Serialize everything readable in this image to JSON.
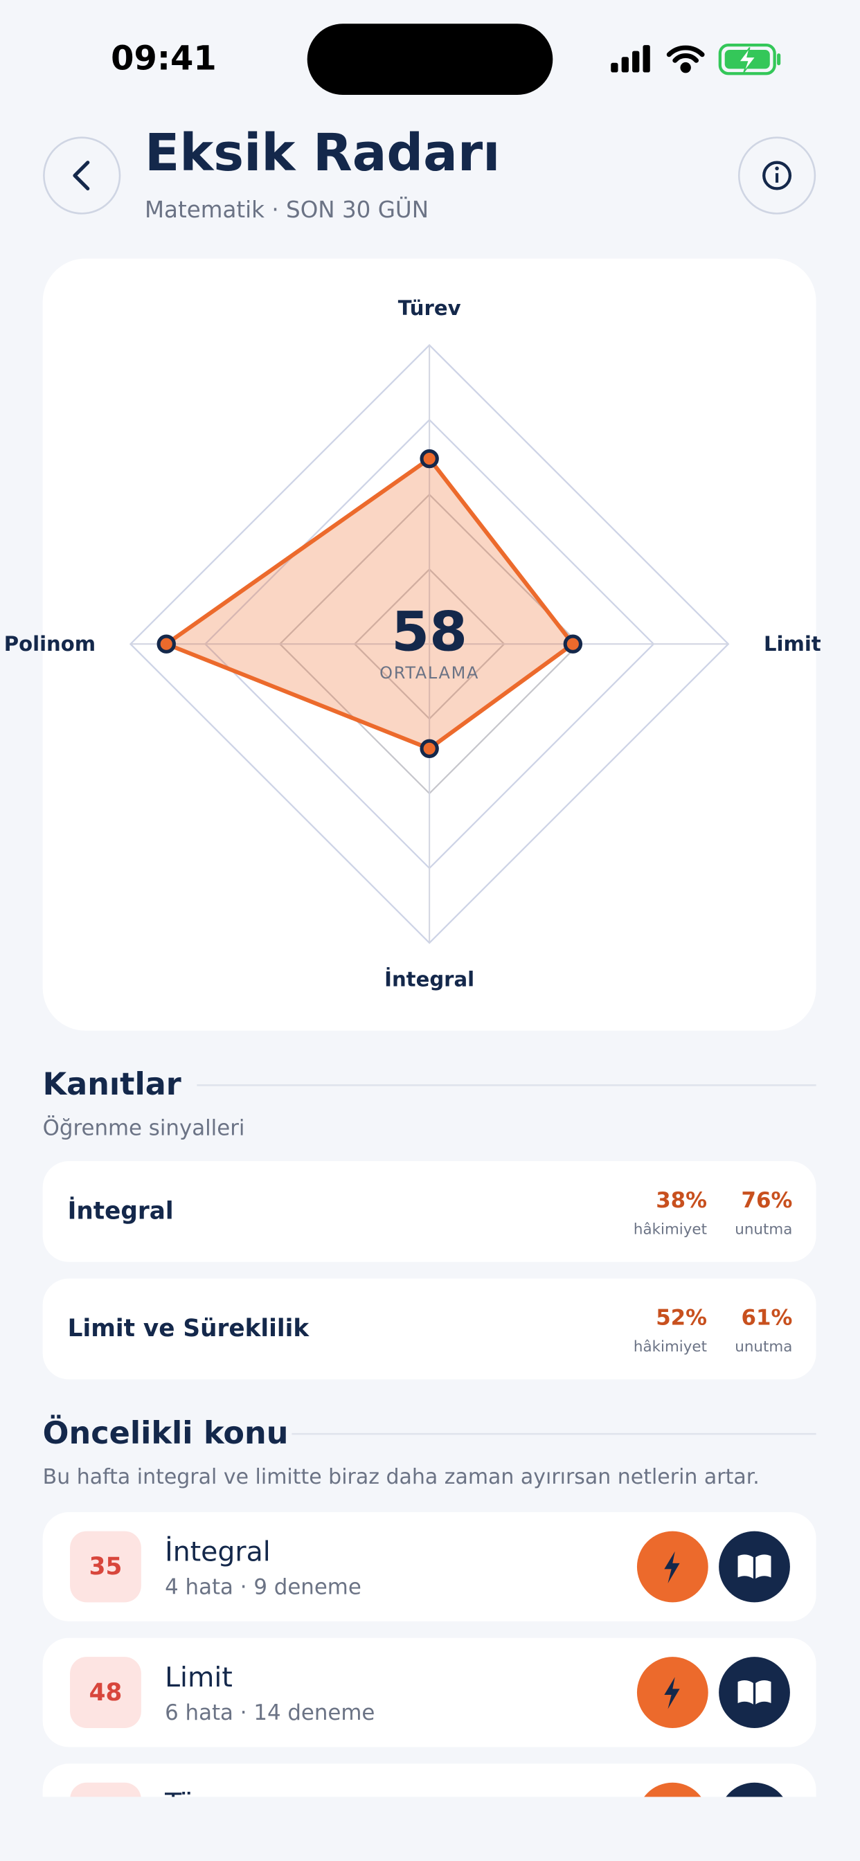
{
  "status_bar": {
    "time": "09:41"
  },
  "header": {
    "title": "Eksik Radarı",
    "subtitle": "Matematik · SON 30 GÜN"
  },
  "radar": {
    "type": "radar",
    "categories": [
      "Türev",
      "Limit",
      "İntegral",
      "Polinom"
    ],
    "values": [
      62,
      48,
      35,
      88
    ],
    "rlim": [
      0,
      100
    ],
    "rticks": [
      25,
      50,
      75,
      100
    ],
    "color": "#ec6a2c",
    "center_value": 58,
    "center_label": "ORTALAMA"
  },
  "evidence": {
    "title": "Kanıtlar",
    "subtitle": "Öğrenme sinyalleri",
    "rows": [
      {
        "topic": "İntegral",
        "mastery": "38%",
        "mastery_caption": "hâkimiyet",
        "forgetting": "76%",
        "forgetting_caption": "unutma"
      },
      {
        "topic": "Limit ve Süreklilik",
        "mastery": "52%",
        "mastery_caption": "hâkimiyet",
        "forgetting": "61%",
        "forgetting_caption": "unutma"
      }
    ]
  },
  "priority": {
    "title": "Öncelikli konu",
    "subtitle": "Bu hafta integral ve limitte biraz daha zaman ayırırsan netlerin artar.",
    "items": [
      {
        "score": 35,
        "title": "İntegral",
        "detail": "4 hata · 9 deneme"
      },
      {
        "score": 48,
        "title": "Limit",
        "detail": "6 hata · 14 deneme"
      },
      {
        "title": "Türev"
      }
    ]
  }
}
